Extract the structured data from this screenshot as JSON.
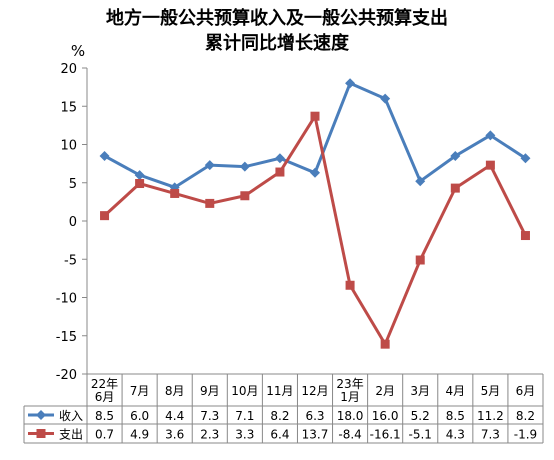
{
  "chart_data": {
    "type": "line",
    "title_line1": "地方一般公共预算收入及一般公共预算支出",
    "title_line2": "累计同比增长速度",
    "ylabel": "%",
    "ylim": [
      -20,
      20
    ],
    "yticks": [
      20,
      15,
      10,
      5,
      0,
      -5,
      -10,
      -15,
      -20
    ],
    "categories": [
      [
        "22年",
        "6月"
      ],
      [
        "7月"
      ],
      [
        "8月"
      ],
      [
        "9月"
      ],
      [
        "10月"
      ],
      [
        "11月"
      ],
      [
        "12月"
      ],
      [
        "23年",
        "1月"
      ],
      [
        "2月"
      ],
      [
        "3月"
      ],
      [
        "4月"
      ],
      [
        "5月"
      ],
      [
        "6月"
      ]
    ],
    "series": [
      {
        "name": "收入",
        "color": "#4a7ebb",
        "marker": "diamond",
        "values": [
          8.5,
          6.0,
          4.4,
          7.3,
          7.1,
          8.2,
          6.3,
          18.0,
          16.0,
          5.2,
          8.5,
          11.2,
          8.2
        ],
        "labels": [
          "8.5",
          "6.0",
          "4.4",
          "7.3",
          "7.1",
          "8.2",
          "6.3",
          "18.0",
          "16.0",
          "5.2",
          "8.5",
          "11.2",
          "8.2"
        ]
      },
      {
        "name": "支出",
        "color": "#be4b48",
        "marker": "square",
        "values": [
          0.7,
          4.9,
          3.6,
          2.3,
          3.3,
          6.4,
          13.7,
          -8.4,
          -16.1,
          -5.1,
          4.3,
          7.3,
          -1.9
        ],
        "labels": [
          "0.7",
          "4.9",
          "3.6",
          "2.3",
          "3.3",
          "6.4",
          "13.7",
          "-8.4",
          "-16.1",
          "-5.1",
          "4.3",
          "7.3",
          "-1.9"
        ]
      }
    ],
    "grid": false,
    "legend": "data-table"
  }
}
